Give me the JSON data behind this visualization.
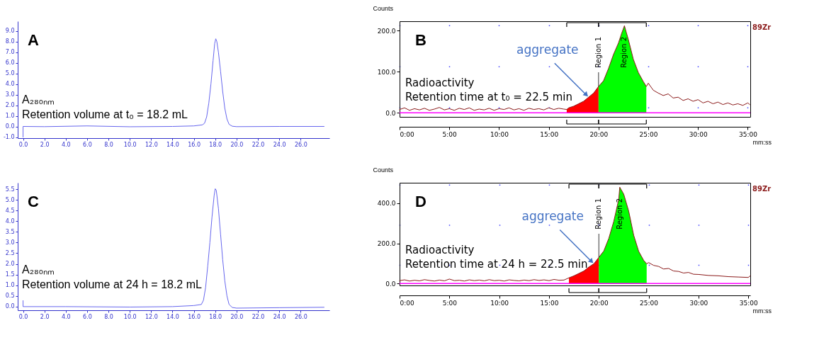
{
  "chart_data": [
    {
      "type": "line",
      "xlim": [
        -0.5,
        28.7
      ],
      "ylim": [
        -1.1,
        9.9
      ],
      "xticks": [
        {
          "value": 0,
          "label": "0.0"
        },
        {
          "value": 2,
          "label": "2.0"
        },
        {
          "value": 4,
          "label": "4.0"
        },
        {
          "value": 6,
          "label": "6.0"
        },
        {
          "value": 8,
          "label": "8.0"
        },
        {
          "value": 10,
          "label": "10.0"
        },
        {
          "value": 12,
          "label": "12.0"
        },
        {
          "value": 14,
          "label": "14.0"
        },
        {
          "value": 16,
          "label": "16.0"
        },
        {
          "value": 18,
          "label": "18.0"
        },
        {
          "value": 20,
          "label": "20.0"
        },
        {
          "value": 22,
          "label": "22.0"
        },
        {
          "value": 24,
          "label": "24.0"
        },
        {
          "value": 26,
          "label": "26.0"
        }
      ],
      "yticks": [
        {
          "value": -1,
          "label": "-1.0"
        },
        {
          "value": 0,
          "label": "0.0"
        },
        {
          "value": 1,
          "label": "1.0"
        },
        {
          "value": 2,
          "label": "2.0"
        },
        {
          "value": 3,
          "label": "3.0"
        },
        {
          "value": 4,
          "label": "4.0"
        },
        {
          "value": 5,
          "label": "5.0"
        },
        {
          "value": 6,
          "label": "6.0"
        },
        {
          "value": 7,
          "label": "7.0"
        },
        {
          "value": 8,
          "label": "8.0"
        },
        {
          "value": 9,
          "label": "9.0"
        }
      ],
      "series": [
        {
          "color": "#6666ee",
          "x": [
            0,
            0,
            2,
            6,
            10,
            14,
            16,
            16.8,
            17,
            17.2,
            17.4,
            17.6,
            17.8,
            17.95,
            18.05,
            18.15,
            18.3,
            18.5,
            18.7,
            18.9,
            19.1,
            19.3,
            19.6,
            20,
            24,
            28.2
          ],
          "values": [
            -1,
            0,
            -0.02,
            0.05,
            -0.03,
            0,
            0.05,
            0.15,
            0.3,
            0.9,
            2.2,
            4,
            6.2,
            7.8,
            8.25,
            8,
            7,
            5.2,
            3.3,
            1.7,
            0.7,
            0.2,
            0.02,
            -0.02,
            0,
            0
          ]
        }
      ],
      "annotations": [
        "A",
        "A₂₈₀ₙₘ",
        "Retention volume at t₀ = 18.2 mL"
      ]
    },
    {
      "type": "line",
      "xlim": [
        0,
        35.25
      ],
      "ylim": [
        -10,
        223
      ],
      "xlabel": "mm:ss",
      "ylabel": "Counts",
      "grid": true,
      "xticks": [
        {
          "value": 0,
          "label": "0:00"
        },
        {
          "value": 5,
          "label": "5:00"
        },
        {
          "value": 10,
          "label": "10:00"
        },
        {
          "value": 15,
          "label": "15:00"
        },
        {
          "value": 20,
          "label": "20:00"
        },
        {
          "value": 25,
          "label": "25:00"
        },
        {
          "value": 30,
          "label": "30:00"
        },
        {
          "value": 35,
          "label": "35:00"
        }
      ],
      "yticks": [
        {
          "value": 0,
          "label": "0.0"
        },
        {
          "value": 100,
          "label": "100.0"
        },
        {
          "value": 200,
          "label": "200.0"
        }
      ],
      "series": [
        {
          "name": "89Zr",
          "color": "#8b1a1a",
          "x": [
            0,
            0.5,
            1,
            1.5,
            2,
            2.5,
            3,
            3.5,
            4,
            4.5,
            5,
            5.5,
            6,
            6.5,
            7,
            7.5,
            8,
            8.5,
            9,
            9.5,
            10,
            10.5,
            11,
            11.5,
            12,
            12.5,
            13,
            13.5,
            14,
            14.5,
            15,
            15.5,
            16,
            16.5,
            16.8,
            17,
            17.5,
            18,
            18.5,
            19,
            19.5,
            20,
            20.5,
            21,
            21.5,
            22,
            22.3,
            22.6,
            22.8,
            23,
            23.5,
            24,
            24.5,
            24.8,
            25,
            25.5,
            26,
            26.5,
            27,
            27.5,
            28,
            28.5,
            29,
            29.5,
            30,
            30.5,
            31,
            31.5,
            32,
            32.5,
            33,
            33.5,
            34,
            34.5,
            35,
            35.2
          ],
          "values": [
            8,
            12,
            6,
            10,
            7,
            11,
            6,
            9,
            13,
            7,
            10,
            6,
            11,
            8,
            12,
            6,
            9,
            7,
            11,
            6,
            10,
            8,
            12,
            7,
            10,
            6,
            11,
            8,
            10,
            7,
            12,
            8,
            11,
            9,
            8,
            12,
            16,
            22,
            28,
            38,
            48,
            64,
            78,
            108,
            142,
            170,
            192,
            212,
            195,
            178,
            130,
            98,
            76,
            64,
            72,
            55,
            48,
            42,
            46,
            36,
            38,
            30,
            34,
            28,
            32,
            24,
            28,
            22,
            26,
            20,
            24,
            19,
            22,
            18,
            24,
            20
          ]
        },
        {
          "name": "Region 1",
          "type": "area",
          "color": "#ff0000",
          "x": [
            16.8,
            17,
            17.5,
            18,
            18.5,
            19,
            19.5,
            20
          ],
          "values": [
            8,
            12,
            16,
            22,
            28,
            38,
            48,
            64
          ]
        },
        {
          "name": "Region 2",
          "type": "area",
          "color": "#00ff00",
          "x": [
            20,
            20.5,
            21,
            21.5,
            22,
            22.3,
            22.6,
            22.8,
            23,
            23.5,
            24,
            24.5,
            24.8
          ],
          "values": [
            64,
            78,
            108,
            142,
            170,
            192,
            212,
            195,
            178,
            130,
            98,
            76,
            64
          ]
        }
      ],
      "ref_lines": [
        {
          "axis": "y",
          "value": 0,
          "color": "#ff00ff"
        }
      ],
      "annotations": [
        "B",
        "Radioactivity",
        "Retention time at t₀ = 22.5 min",
        {
          "text": "aggregate",
          "x": 19,
          "y": 38
        }
      ]
    },
    {
      "type": "line",
      "xlim": [
        -0.5,
        28.7
      ],
      "ylim": [
        -0.17,
        5.8
      ],
      "xticks": [
        {
          "value": 0,
          "label": "0.0"
        },
        {
          "value": 2,
          "label": "2.0"
        },
        {
          "value": 4,
          "label": "4.0"
        },
        {
          "value": 6,
          "label": "6.0"
        },
        {
          "value": 8,
          "label": "8.0"
        },
        {
          "value": 10,
          "label": "10.0"
        },
        {
          "value": 12,
          "label": "12.0"
        },
        {
          "value": 14,
          "label": "14.0"
        },
        {
          "value": 16,
          "label": "16.0"
        },
        {
          "value": 18,
          "label": "18.0"
        },
        {
          "value": 20,
          "label": "20.0"
        },
        {
          "value": 22,
          "label": "22.0"
        },
        {
          "value": 24,
          "label": "24.0"
        },
        {
          "value": 26,
          "label": "26.0"
        }
      ],
      "yticks": [
        {
          "value": 0,
          "label": "0.0"
        },
        {
          "value": 0.5,
          "label": "0.5"
        },
        {
          "value": 1,
          "label": "1.0"
        },
        {
          "value": 1.5,
          "label": "1.5"
        },
        {
          "value": 2,
          "label": "2.0"
        },
        {
          "value": 2.5,
          "label": "2.5"
        },
        {
          "value": 3,
          "label": "3.0"
        },
        {
          "value": 3.5,
          "label": "3.5"
        },
        {
          "value": 4,
          "label": "4.0"
        },
        {
          "value": 4.5,
          "label": "4.5"
        },
        {
          "value": 5,
          "label": "5.0"
        },
        {
          "value": 5.5,
          "label": "5.5"
        }
      ],
      "series": [
        {
          "color": "#6666ee",
          "x": [
            0,
            0,
            4,
            10,
            14,
            16,
            16.7,
            16.9,
            17.1,
            17.3,
            17.5,
            17.7,
            17.9,
            18,
            18.1,
            18.3,
            18.5,
            18.7,
            18.9,
            19.1,
            19.3,
            19.6,
            20,
            24,
            28.2
          ],
          "values": [
            0.28,
            0,
            0,
            -0.02,
            0,
            0.05,
            0.1,
            0.3,
            0.9,
            1.9,
            3,
            4.2,
            5.2,
            5.52,
            5.45,
            4.6,
            3.4,
            2.2,
            1.2,
            0.5,
            0.1,
            -0.04,
            -0.07,
            -0.05,
            -0.03
          ]
        }
      ],
      "annotations": [
        "C",
        "A₂₈₀ₙₘ",
        "Retention volume at 24 h = 18.2 mL"
      ]
    },
    {
      "type": "line",
      "xlim": [
        0,
        35.2
      ],
      "ylim": [
        -10,
        502
      ],
      "xlabel": "mm:ss",
      "ylabel": "Counts",
      "grid": true,
      "xticks": [
        {
          "value": 0,
          "label": "0:00"
        },
        {
          "value": 5,
          "label": "5:00"
        },
        {
          "value": 10,
          "label": "10:00"
        },
        {
          "value": 15,
          "label": "15:00"
        },
        {
          "value": 20,
          "label": "20:00"
        },
        {
          "value": 25,
          "label": "25:00"
        },
        {
          "value": 30,
          "label": "30:00"
        },
        {
          "value": 35,
          "label": "35:00"
        }
      ],
      "yticks": [
        {
          "value": 0,
          "label": "0.0"
        },
        {
          "value": 200,
          "label": "200.0"
        },
        {
          "value": 400,
          "label": "400.0"
        }
      ],
      "series": [
        {
          "name": "89Zr",
          "color": "#8b1a1a",
          "x": [
            0,
            0.5,
            1,
            1.5,
            2,
            2.5,
            3,
            3.5,
            4,
            4.5,
            5,
            5.5,
            6,
            6.5,
            7,
            7.5,
            8,
            8.5,
            9,
            9.5,
            10,
            10.5,
            11,
            11.5,
            12,
            12.5,
            13,
            13.5,
            14,
            14.5,
            15,
            15.5,
            16,
            16.5,
            17,
            17.5,
            18,
            18.5,
            19,
            19.5,
            20,
            20.5,
            21,
            21.5,
            22,
            22.1,
            22.5,
            23,
            23.5,
            24,
            24.5,
            24.8,
            25,
            25.5,
            26,
            26.5,
            27,
            27.5,
            28,
            28.5,
            29,
            29.5,
            30,
            31,
            32,
            33,
            34,
            35,
            35.2
          ],
          "values": [
            14,
            18,
            12,
            16,
            13,
            19,
            15,
            12,
            17,
            13,
            22,
            14,
            16,
            12,
            18,
            14,
            17,
            13,
            19,
            14,
            16,
            12,
            18,
            15,
            13,
            17,
            14,
            19,
            15,
            18,
            14,
            20,
            16,
            17,
            28,
            38,
            50,
            62,
            82,
            98,
            130,
            162,
            225,
            310,
            420,
            480,
            445,
            360,
            240,
            160,
            115,
            98,
            104,
            90,
            85,
            72,
            75,
            62,
            60,
            52,
            55,
            46,
            45,
            40,
            38,
            34,
            32,
            30,
            38
          ]
        },
        {
          "name": "Region 1",
          "type": "area",
          "color": "#ff0000",
          "x": [
            17,
            17.5,
            18,
            18.5,
            19,
            19.5,
            20
          ],
          "values": [
            28,
            38,
            50,
            62,
            82,
            98,
            130
          ]
        },
        {
          "name": "Region 2",
          "type": "area",
          "color": "#00ff00",
          "x": [
            20,
            20.5,
            21,
            21.5,
            22,
            22.1,
            22.5,
            23,
            23.5,
            24,
            24.5,
            24.8
          ],
          "values": [
            130,
            162,
            225,
            310,
            420,
            480,
            445,
            360,
            240,
            160,
            115,
            98
          ]
        }
      ],
      "ref_lines": [
        {
          "axis": "y",
          "value": 0,
          "color": "#ff00ff"
        }
      ],
      "annotations": [
        "D",
        "Radioactivity",
        "Retention time at 24 h = 22.5 min",
        {
          "text": "aggregate",
          "x": 19.5,
          "y": 98
        }
      ]
    }
  ]
}
